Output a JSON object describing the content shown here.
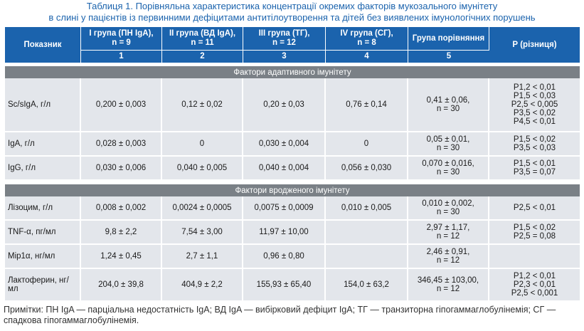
{
  "caption": {
    "line1": "Таблиця 1.  Порівняльна характеристика концентрації окремих факторів мукозального імунітету",
    "line2": "в слині у пацієнтів із первинними дефіцитами антитілоутворення та дітей без виявлених імунологічних порушень"
  },
  "header": {
    "indicator": "Показник",
    "groups": [
      {
        "line1": "I група (ПН IgA),",
        "line2": "n = 9",
        "num": "1"
      },
      {
        "line1": "II група (ВД IgA),",
        "line2": "n = 11",
        "num": "2"
      },
      {
        "line1": "III група (ТГ),",
        "line2": "n = 12",
        "num": "3"
      },
      {
        "line1": "IV група (СГ),",
        "line2": "n = 8",
        "num": "4"
      },
      {
        "line1": "Група порівняння",
        "line2": "",
        "num": "5"
      }
    ],
    "p": "Р (різниця)"
  },
  "sections": [
    {
      "title": "Фактори адаптивного імунітету",
      "rows": [
        {
          "name": "Sc/sIgA, г/л",
          "v1": "0,200 ± 0,003",
          "v2": "0,12 ± 0,02",
          "v3": "0,20 ± 0,03",
          "v4": "0,76 ± 0,14",
          "v5a": "0,41 ± 0,06,",
          "v5b": "n = 30",
          "p": [
            "P1,2 < 0,01",
            "P1,5 < 0,03",
            "P2,5 < 0,005",
            "P3,5 < 0,02",
            "P4,5 < 0,01"
          ]
        },
        {
          "name": "IgA, г/л",
          "v1": "0,028 ± 0,003",
          "v2": "0",
          "v3": "0,030 ± 0,004",
          "v4": "0",
          "v5a": "0,05 ± 0,01,",
          "v5b": "n = 30",
          "p": [
            "P1,5 < 0,02",
            "P3,5 < 0,03"
          ]
        },
        {
          "name": "IgG, г/л",
          "v1": "0,030 ± 0,006",
          "v2": "0,040 ± 0,005",
          "v3": "0,040 ± 0,004",
          "v4": "0,056 ± 0,030",
          "v5a": "0,070 ± 0,016,",
          "v5b": "n = 30",
          "p": [
            "P1,5 < 0,01",
            "P3,5 = 0,07"
          ]
        }
      ]
    },
    {
      "title": "Фактори вродженого імунітету",
      "rows": [
        {
          "name": "Лізоцим, г/л",
          "v1": "0,008 ± 0,002",
          "v2": "0,0024 ± 0,0005",
          "v3": "0,0075 ± 0,0009",
          "v4": "0,010 ± 0,005",
          "v5a": "0,010 ± 0,002,",
          "v5b": "n = 30",
          "p": [
            "P2,5 < 0,01"
          ]
        },
        {
          "name": "TNF-α, пг/мл",
          "v1": "9,8 ± 2,2",
          "v2": "7,54 ± 3,00",
          "v3": "11,97 ± 10,00",
          "v4": "",
          "v5a": "2,97 ± 1,17,",
          "v5b": "n = 12",
          "p": [
            "P1,5 < 0,02",
            "P2,5 = 0,08"
          ]
        },
        {
          "name": "Mip1α, нг/мл",
          "v1": "1,24 ± 0,45",
          "v2": "2,7 ± 1,1",
          "v3": "0,96 ± 0,80",
          "v4": "",
          "v5a": "2,46 ± 0,91,",
          "v5b": "n = 12",
          "p": []
        },
        {
          "name": "Лактоферин, нг/мл",
          "v1": "204,0 ± 39,8",
          "v2": "404,9 ± 2,2",
          "v3": "155,93 ± 65,40",
          "v4": "154,0 ± 63,2",
          "v5a": "346,45 ± 103,00,",
          "v5b": "n = 12",
          "p": [
            "P1,2 < 0,01",
            "P2,3 < 0,01",
            "P2,5 < 0,001"
          ]
        }
      ]
    }
  ],
  "note": "Примітки:  ПН IgA — парціальна недостатність IgA; ВД IgA — вибірковий дефіцит IgA; ТГ — транзиторна гіпогаммаглобулінемія; СГ — спадкова гіпогаммаглобулінемія."
}
